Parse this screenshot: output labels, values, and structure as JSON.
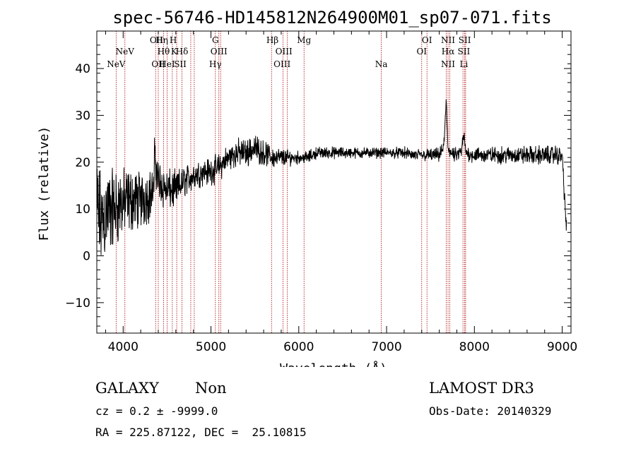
{
  "chart_data": {
    "type": "line",
    "title": "spec-56746-HD145812N264900M01_sp07-071.fits",
    "xlabel": "Wavelength (Å)",
    "ylabel": "Flux (relative)",
    "xlim": [
      3700,
      9100
    ],
    "ylim": [
      -16.5,
      48
    ],
    "x_ticks": [
      4000,
      5000,
      6000,
      7000,
      8000,
      9000
    ],
    "x_tick_labels": [
      "4000",
      "5000",
      "6000",
      "7000",
      "8000",
      "9000"
    ],
    "y_ticks": [
      -10,
      0,
      10,
      20,
      30,
      40
    ],
    "y_tick_labels": [
      "−10",
      "0",
      "10",
      "20",
      "30",
      "40"
    ],
    "line_color": "#000000",
    "marker_color": "#aa0000",
    "spectrum_envelope": {
      "x": [
        3700,
        3750,
        3800,
        3850,
        3900,
        3950,
        4000,
        4100,
        4200,
        4300,
        4350,
        4360,
        4400,
        4500,
        4600,
        4700,
        4800,
        4900,
        5000,
        5100,
        5200,
        5300,
        5400,
        5500,
        5600,
        5700,
        5800,
        5900,
        6000,
        6100,
        6200,
        6300,
        6400,
        6500,
        6600,
        6700,
        6800,
        6900,
        7000,
        7100,
        7200,
        7300,
        7400,
        7500,
        7600,
        7650,
        7680,
        7700,
        7750,
        7800,
        7850,
        7880,
        7900,
        8000,
        8100,
        8200,
        8300,
        8400,
        8500,
        8600,
        8700,
        8800,
        8900,
        9000,
        9050
      ],
      "y": [
        10,
        7,
        9,
        10,
        10,
        11,
        11,
        12,
        12,
        13,
        14,
        22,
        16,
        14,
        14,
        16,
        17,
        18,
        18,
        19,
        21,
        22,
        22,
        23,
        22,
        21,
        21,
        21,
        21,
        21,
        22,
        22,
        22,
        22,
        22,
        22,
        22,
        22,
        22,
        22,
        22,
        21.5,
        21.5,
        21.5,
        21.5,
        23,
        33,
        23,
        21.5,
        21.5,
        22,
        26,
        22,
        21.5,
        21.5,
        21.5,
        21.5,
        21.5,
        21.5,
        21.5,
        21.5,
        21.5,
        21.5,
        21.5,
        5
      ]
    },
    "spectrum_noise": {
      "x": [
        3700,
        4000,
        4400,
        4800,
        5500,
        6000,
        7000,
        8000,
        9050
      ],
      "amplitude": [
        14,
        9,
        6,
        3.5,
        3.5,
        1.6,
        1.3,
        2,
        2.5
      ]
    },
    "spectral_lines": [
      {
        "label": "NeV",
        "wavelength": 3920,
        "row": 2
      },
      {
        "label": "NeV",
        "wavelength": 4020,
        "row": 1
      },
      {
        "label": "OII",
        "wavelength": 4380,
        "row": 0
      },
      {
        "label": "Hη",
        "wavelength": 4440,
        "row": 0
      },
      {
        "label": "Hθ",
        "wavelength": 4460,
        "row": 1
      },
      {
        "label": "OII",
        "wavelength": 4400,
        "row": 2
      },
      {
        "label": "HeI",
        "wavelength": 4500,
        "row": 2
      },
      {
        "label": "H",
        "wavelength": 4570,
        "row": 0
      },
      {
        "label": "K",
        "wavelength": 4580,
        "row": 1
      },
      {
        "label": "Hδ",
        "wavelength": 4670,
        "row": 1
      },
      {
        "label": "SII",
        "wavelength": 4650,
        "row": 2
      },
      {
        "label": "G",
        "wavelength": 5050,
        "row": 0
      },
      {
        "label": "OIII",
        "wavelength": 5090,
        "row": 1
      },
      {
        "label": "Hγ",
        "wavelength": 5050,
        "row": 2
      },
      {
        "label": "Hβ",
        "wavelength": 5700,
        "row": 0
      },
      {
        "label": "OIII",
        "wavelength": 5830,
        "row": 1
      },
      {
        "label": "OIII",
        "wavelength": 5810,
        "row": 2
      },
      {
        "label": "Mg",
        "wavelength": 6060,
        "row": 0
      },
      {
        "label": "Na",
        "wavelength": 6940,
        "row": 2
      },
      {
        "label": "OI",
        "wavelength": 7460,
        "row": 0
      },
      {
        "label": "OI",
        "wavelength": 7400,
        "row": 1
      },
      {
        "label": "NII",
        "wavelength": 7700,
        "row": 0
      },
      {
        "label": "SII",
        "wavelength": 7890,
        "row": 0
      },
      {
        "label": "Hα",
        "wavelength": 7700,
        "row": 1
      },
      {
        "label": "SII",
        "wavelength": 7880,
        "row": 1
      },
      {
        "label": "NII",
        "wavelength": 7700,
        "row": 2
      },
      {
        "label": "Li",
        "wavelength": 7880,
        "row": 2
      }
    ],
    "marker_lines": [
      3920,
      4020,
      4370,
      4400,
      4460,
      4500,
      4560,
      4610,
      4670,
      4770,
      4810,
      5050,
      5090,
      5110,
      5690,
      5820,
      5870,
      6060,
      6940,
      7400,
      7460,
      7680,
      7700,
      7720,
      7870,
      7890,
      7900
    ]
  },
  "info": {
    "object_class": "GALAXY",
    "subclass": "Non",
    "survey": "LAMOST DR3",
    "redshift_line": "cz = 0.2 ± -9999.0",
    "obs_date_line": "Obs-Date: 20140329",
    "coords_line": "RA = 225.87122, DEC =  25.10815"
  }
}
